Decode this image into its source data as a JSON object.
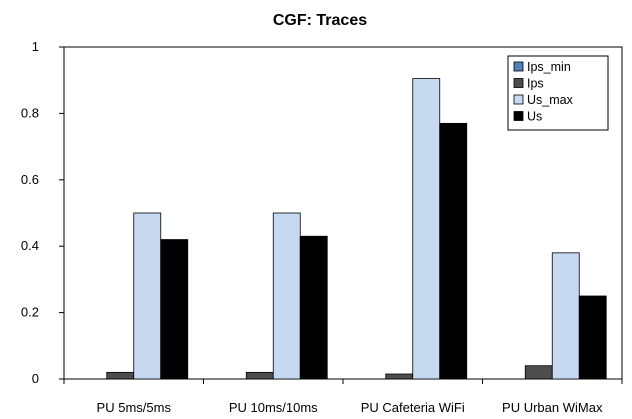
{
  "chart_data": {
    "type": "bar",
    "title": "CGF: Traces",
    "xlabel": "",
    "ylabel": "",
    "ylim": [
      0,
      1
    ],
    "yticks": [
      "0",
      "0.2",
      "0.4",
      "0.6",
      "0.8",
      "1"
    ],
    "grid": false,
    "legend_position": "top-right",
    "categories": [
      "PU 5ms/5ms",
      "PU 10ms/10ms",
      "PU Cafeteria WiFi",
      "PU Urban WiMax"
    ],
    "series": [
      {
        "name": "Ips_min",
        "color": "#4f81bd",
        "values": [
          0,
          0,
          0,
          0
        ]
      },
      {
        "name": "Ips",
        "color": "#4d4d4d",
        "values": [
          0.02,
          0.02,
          0.015,
          0.04
        ]
      },
      {
        "name": "Us_max",
        "color": "#c6d9f1",
        "values": [
          0.5,
          0.5,
          0.905,
          0.38
        ]
      },
      {
        "name": "Us",
        "color": "#000000",
        "values": [
          0.42,
          0.43,
          0.77,
          0.25
        ]
      }
    ]
  }
}
